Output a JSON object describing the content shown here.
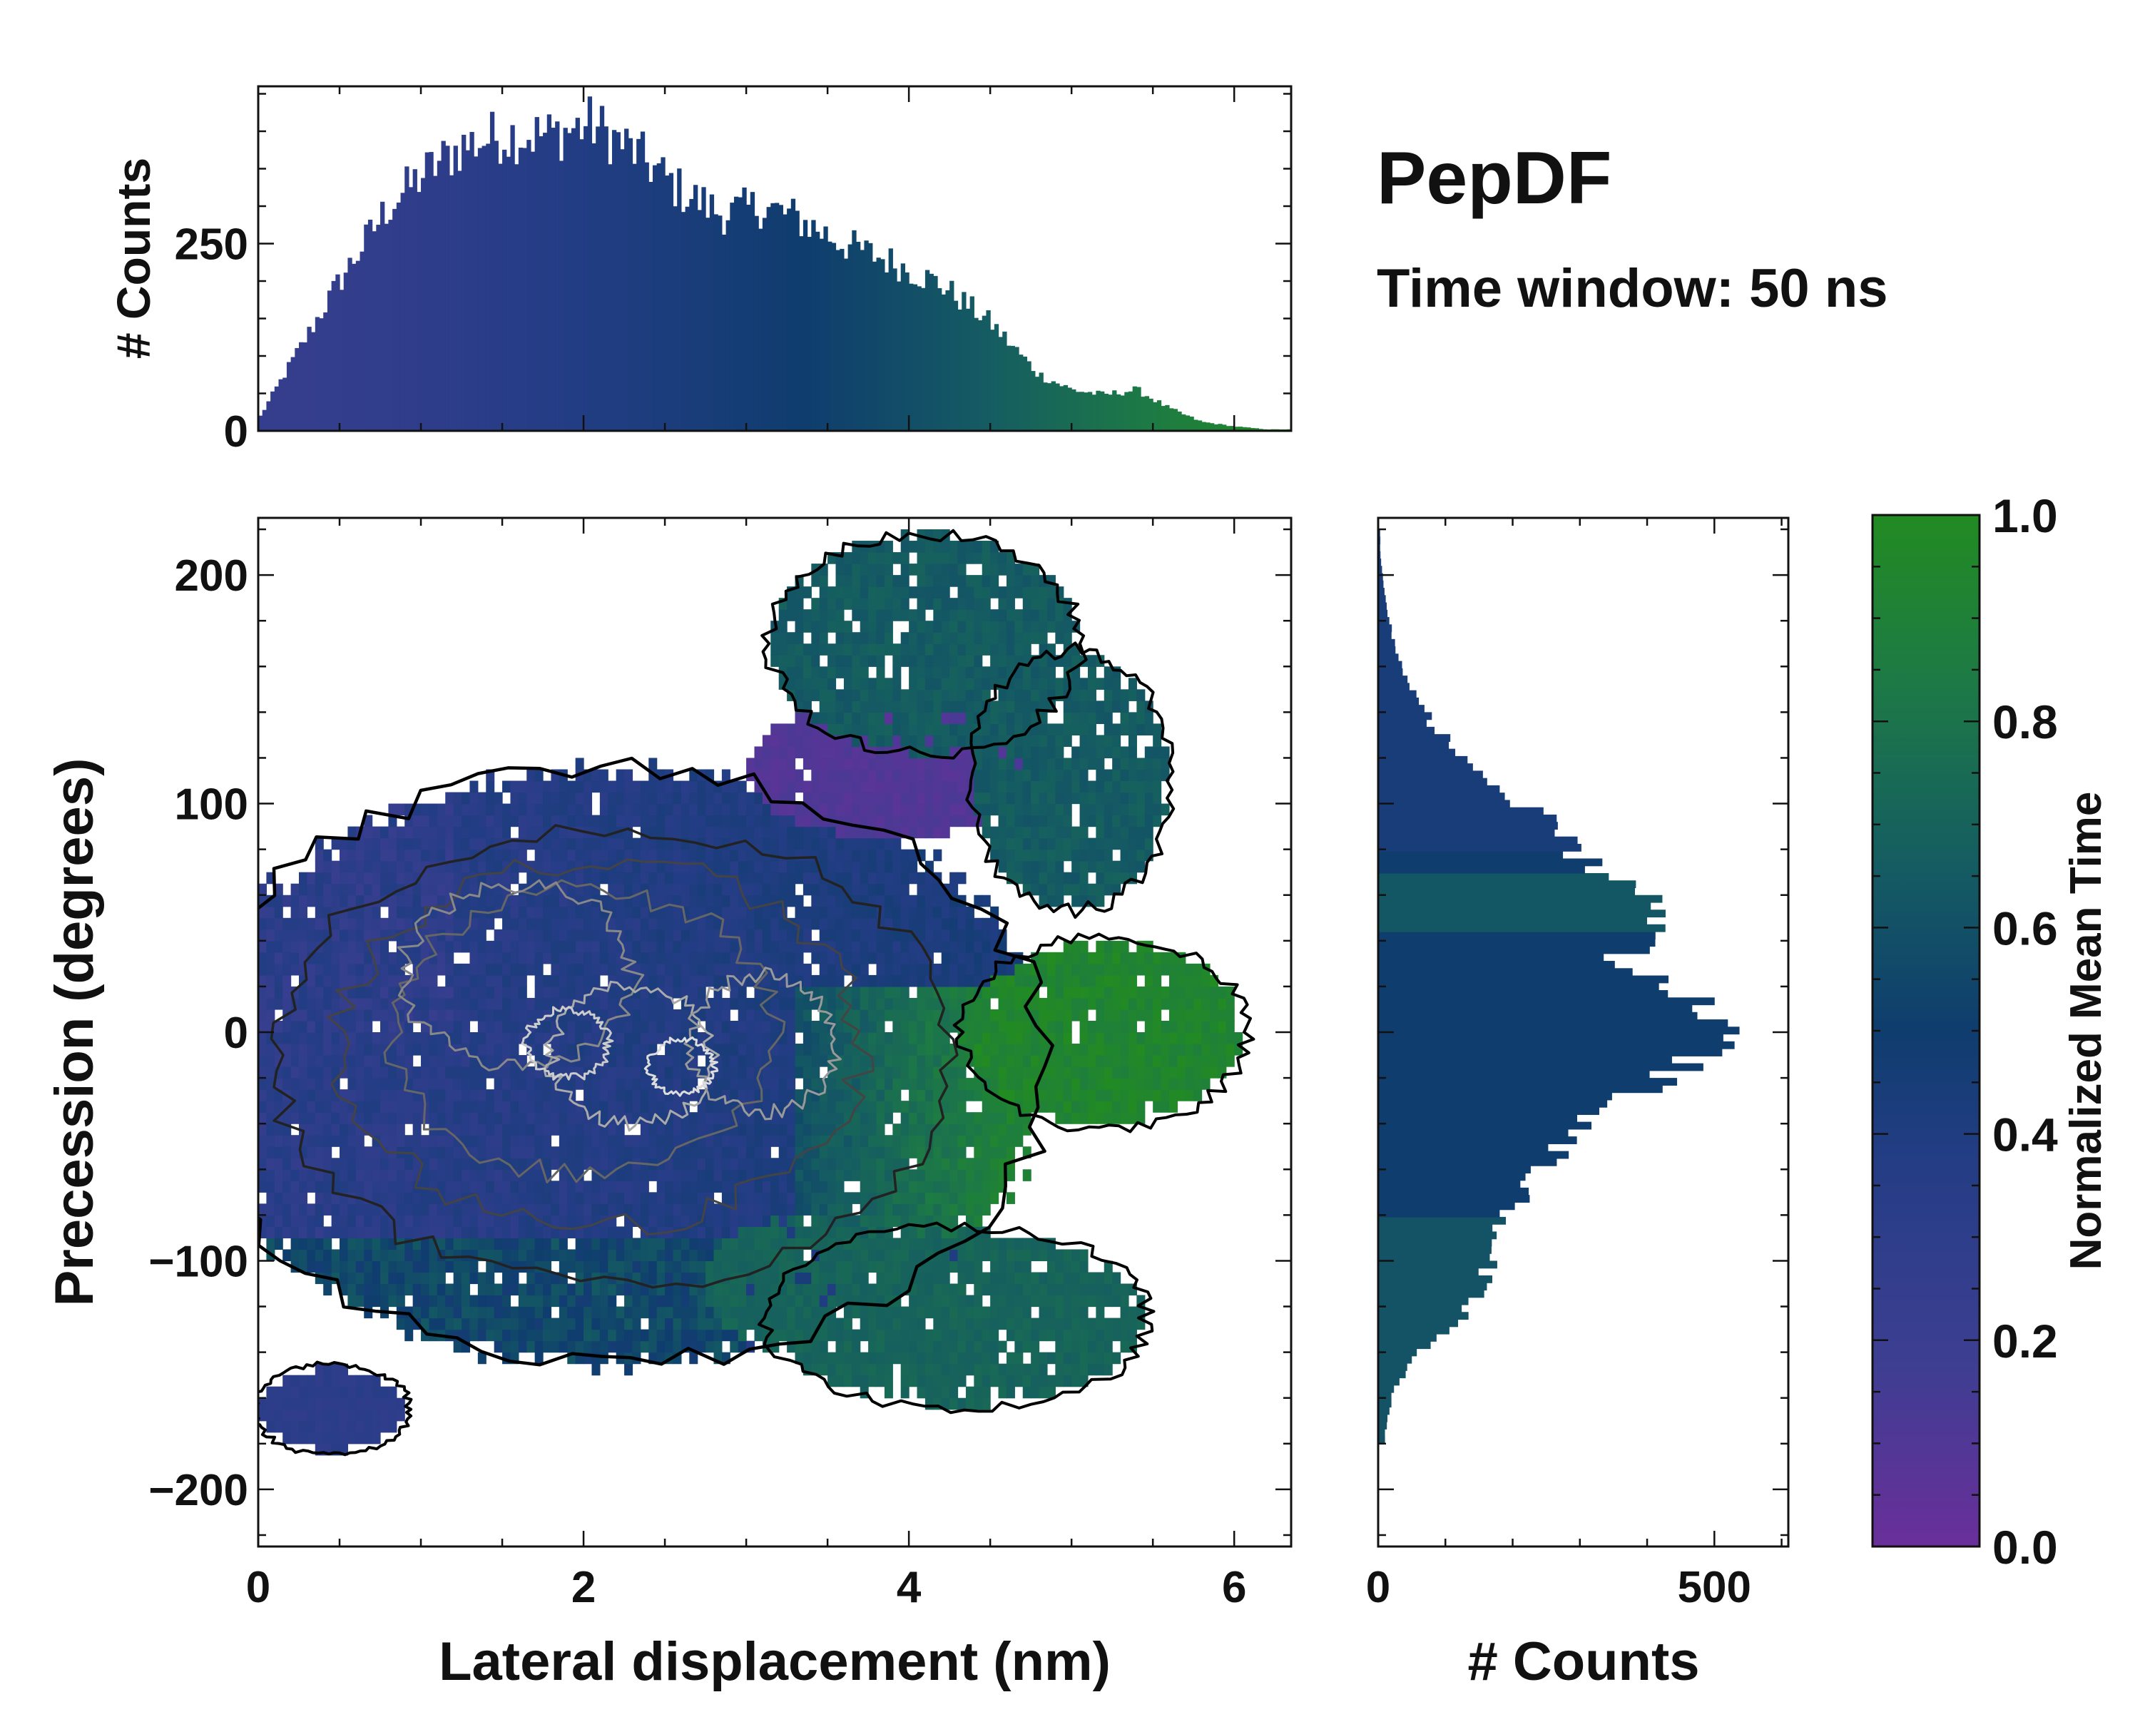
{
  "chart_data": [
    {
      "type": "bar",
      "role": "top-marginal-histogram",
      "xlabel": "",
      "ylabel": "# Counts",
      "xlim": [
        0,
        6.35
      ],
      "ylim": [
        0,
        460
      ],
      "yticks": [
        {
          "v": 0,
          "label": "0"
        },
        {
          "v": 250,
          "label": "250"
        }
      ],
      "bin_width": 0.025,
      "profile_x": [
        0,
        0.2,
        0.5,
        0.8,
        1.0,
        1.25,
        1.5,
        1.8,
        2.05,
        2.3,
        2.6,
        2.85,
        3.1,
        3.3,
        3.6,
        3.9,
        4.2,
        4.5,
        4.8,
        5.0,
        5.2,
        5.4,
        5.6,
        5.8,
        6.0,
        6.2
      ],
      "profile_counts": [
        15,
        90,
        200,
        300,
        340,
        380,
        395,
        395,
        410,
        375,
        320,
        290,
        300,
        285,
        250,
        225,
        195,
        145,
        75,
        55,
        48,
        55,
        30,
        12,
        6,
        2
      ]
    },
    {
      "type": "heatmap",
      "role": "joint-histogram-colored-by-mean-time",
      "xlabel": "Lateral displacement (nm)",
      "ylabel": "Precession (degrees)",
      "xlim": [
        0,
        6.35
      ],
      "ylim": [
        -225,
        225
      ],
      "xticks": [
        {
          "v": 0,
          "label": "0"
        },
        {
          "v": 2,
          "label": "2"
        },
        {
          "v": 4,
          "label": "4"
        },
        {
          "v": 6,
          "label": "6"
        }
      ],
      "yticks": [
        {
          "v": -200,
          "label": "−200"
        },
        {
          "v": -100,
          "label": "−100"
        },
        {
          "v": 0,
          "label": "0"
        },
        {
          "v": 100,
          "label": "100"
        },
        {
          "v": 200,
          "label": "200"
        }
      ],
      "regions": [
        {
          "name": "main cloud",
          "x": [
            0,
            4.8
          ],
          "y": [
            -150,
            110
          ],
          "mean_time": 0.35
        },
        {
          "name": "upper purple patch",
          "x": [
            3.0,
            4.7
          ],
          "y": [
            80,
            140
          ],
          "mean_time": 0.08
        },
        {
          "name": "upper right island",
          "x": [
            3.2,
            5.6
          ],
          "y": [
            60,
            220
          ],
          "mean_time": 0.65
        },
        {
          "name": "right green lobe",
          "x": [
            4.6,
            6.1
          ],
          "y": [
            -50,
            40
          ],
          "mean_time": 0.95
        },
        {
          "name": "lower right island",
          "x": [
            3.3,
            5.6
          ],
          "y": [
            -170,
            -80
          ],
          "mean_time": 0.7
        },
        {
          "name": "lower left patch",
          "x": [
            0,
            0.8
          ],
          "y": [
            -180,
            -140
          ],
          "mean_time": 0.25
        }
      ]
    },
    {
      "type": "bar",
      "orientation": "horizontal",
      "role": "right-marginal-histogram",
      "xlabel": "# Counts",
      "ylabel": "",
      "xlim": [
        0,
        610
      ],
      "ylim": [
        -225,
        225
      ],
      "xticks": [
        {
          "v": 0,
          "label": "0"
        },
        {
          "v": 500,
          "label": "500"
        }
      ],
      "bin_width": 3.2,
      "profile_y": [
        -175,
        -155,
        -140,
        -125,
        -110,
        -100,
        -80,
        -60,
        -40,
        -20,
        -5,
        5,
        20,
        30,
        40,
        55,
        65,
        80,
        95,
        115,
        135,
        155,
        175,
        195,
        210
      ],
      "profile_counts": [
        10,
        25,
        60,
        120,
        160,
        165,
        190,
        240,
        300,
        420,
        520,
        500,
        430,
        360,
        400,
        440,
        360,
        290,
        240,
        140,
        80,
        40,
        20,
        8,
        3
      ]
    }
  ],
  "figure": {
    "title": "PepDF",
    "subtitle": "Time window: 50 ns"
  },
  "colorbar": {
    "label": "Normalized Mean Time",
    "ticks": [
      {
        "v": 0.0,
        "label": "0.0"
      },
      {
        "v": 0.2,
        "label": "0.2"
      },
      {
        "v": 0.4,
        "label": "0.4"
      },
      {
        "v": 0.6,
        "label": "0.6"
      },
      {
        "v": 0.8,
        "label": "0.8"
      },
      {
        "v": 1.0,
        "label": "1.0"
      }
    ],
    "colors": [
      "#6a2f9a",
      "#3d3e92",
      "#233d84",
      "#0f3d6e",
      "#155c62",
      "#1d7a45",
      "#228b22"
    ]
  }
}
